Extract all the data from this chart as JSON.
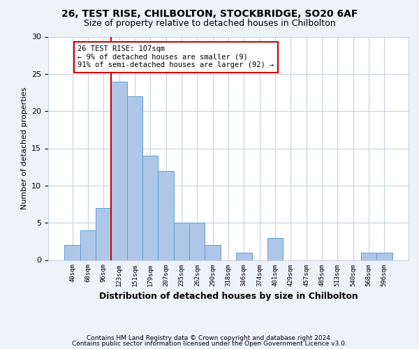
{
  "title1": "26, TEST RISE, CHILBOLTON, STOCKBRIDGE, SO20 6AF",
  "title2": "Size of property relative to detached houses in Chilbolton",
  "xlabel": "Distribution of detached houses by size in Chilbolton",
  "ylabel": "Number of detached properties",
  "bins": [
    "40sqm",
    "68sqm",
    "96sqm",
    "123sqm",
    "151sqm",
    "179sqm",
    "207sqm",
    "235sqm",
    "262sqm",
    "290sqm",
    "318sqm",
    "346sqm",
    "374sqm",
    "401sqm",
    "429sqm",
    "457sqm",
    "485sqm",
    "513sqm",
    "540sqm",
    "568sqm",
    "596sqm"
  ],
  "values": [
    2,
    4,
    7,
    24,
    22,
    14,
    12,
    5,
    5,
    2,
    0,
    1,
    0,
    3,
    0,
    0,
    0,
    0,
    0,
    1,
    1
  ],
  "bar_color": "#aec6e8",
  "bar_edge_color": "#5a9fd4",
  "vline_index": 2,
  "vline_color": "#cc0000",
  "annotation_text": "26 TEST RISE: 107sqm\n← 9% of detached houses are smaller (9)\n91% of semi-detached houses are larger (92) →",
  "annotation_box_color": "#ffffff",
  "annotation_box_edge": "#cc0000",
  "ylim": [
    0,
    30
  ],
  "yticks": [
    0,
    5,
    10,
    15,
    20,
    25,
    30
  ],
  "footer1": "Contains HM Land Registry data © Crown copyright and database right 2024.",
  "footer2": "Contains public sector information licensed under the Open Government Licence v3.0.",
  "bg_color": "#eef2f9",
  "plot_bg_color": "#ffffff",
  "grid_color": "#c8d0de"
}
